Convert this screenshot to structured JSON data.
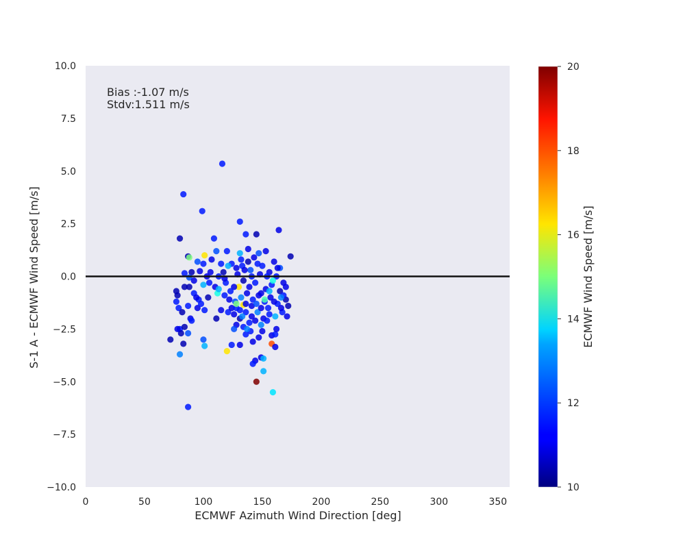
{
  "chart_data": {
    "type": "scatter",
    "title": "",
    "xlabel": "ECMWF Azimuth Wind Direction [deg]",
    "ylabel": "S-1 A - ECMWF Wind Speed [m/s]",
    "xlim": [
      0,
      360
    ],
    "ylim": [
      -10,
      10
    ],
    "xticks": [
      "0",
      "50",
      "100",
      "150",
      "200",
      "250",
      "300",
      "350"
    ],
    "xtick_values": [
      0,
      50,
      100,
      150,
      200,
      250,
      300,
      350
    ],
    "yticks": [
      "10.0",
      "7.5",
      "5.0",
      "2.5",
      "0.0",
      "−2.5",
      "−5.0",
      "−7.5",
      "−10.0"
    ],
    "ytick_values": [
      10,
      7.5,
      5,
      2.5,
      0,
      -2.5,
      -5,
      -7.5,
      -10
    ],
    "grid": false,
    "background_color": "#eaeaf2",
    "reference_line": {
      "y": 0,
      "color": "#111111"
    },
    "annotation_lines": [
      "Bias :-1.07 m/s",
      "Stdv:1.511 m/s"
    ],
    "colorbar": {
      "label": "ECMWF Wind Speed [m/s]",
      "range": [
        10,
        20
      ],
      "ticks": [
        "10",
        "12",
        "14",
        "16",
        "18",
        "20"
      ],
      "tick_values": [
        10,
        12,
        14,
        16,
        18,
        20
      ],
      "colormap": "jet"
    },
    "points": [
      [
        116,
        5.35,
        11.5
      ],
      [
        83,
        3.9,
        11.5
      ],
      [
        99,
        3.1,
        11.5
      ],
      [
        131,
        2.6,
        11.5
      ],
      [
        145,
        2.0,
        10.5
      ],
      [
        164,
        2.2,
        11.0
      ],
      [
        136,
        2.0,
        11.5
      ],
      [
        109,
        1.8,
        11.5
      ],
      [
        80,
        1.8,
        10.5
      ],
      [
        120,
        1.2,
        11.5
      ],
      [
        111,
        1.2,
        12.0
      ],
      [
        101,
        1.0,
        16.5
      ],
      [
        87,
        0.95,
        10.5
      ],
      [
        88,
        0.9,
        15.0
      ],
      [
        174,
        0.95,
        10.5
      ],
      [
        138,
        1.3,
        11.0
      ],
      [
        153,
        1.2,
        11.0
      ],
      [
        147,
        1.1,
        12.0
      ],
      [
        131,
        1.1,
        13.0
      ],
      [
        95,
        0.7,
        12.0
      ],
      [
        100,
        0.6,
        11.5
      ],
      [
        107,
        0.8,
        11.0
      ],
      [
        115,
        0.6,
        11.5
      ],
      [
        165,
        0.4,
        12.0
      ],
      [
        160,
        0.7,
        11.0
      ],
      [
        84,
        0.15,
        11.5
      ],
      [
        90,
        0.2,
        10.5
      ],
      [
        97,
        0.25,
        11.0
      ],
      [
        106,
        0.2,
        11.0
      ],
      [
        113,
        0.0,
        11.5
      ],
      [
        88,
        -0.05,
        12.0
      ],
      [
        92,
        -0.2,
        11.0
      ],
      [
        105,
        -0.3,
        11.5
      ],
      [
        110,
        -0.5,
        11.0
      ],
      [
        100,
        -0.4,
        13.0
      ],
      [
        119,
        -0.3,
        11.5
      ],
      [
        124,
        0.6,
        11.5
      ],
      [
        128,
        0.4,
        11.0
      ],
      [
        133,
        0.5,
        11.5
      ],
      [
        140,
        0.3,
        12.0
      ],
      [
        150,
        0.5,
        11.5
      ],
      [
        156,
        0.2,
        11.0
      ],
      [
        162,
        0.0,
        11.5
      ],
      [
        168,
        -0.3,
        11.0
      ],
      [
        143,
        0.9,
        11.0
      ],
      [
        84,
        -0.5,
        10.5
      ],
      [
        88,
        -0.5,
        10.5
      ],
      [
        92,
        -0.8,
        11.5
      ],
      [
        77,
        -0.7,
        10.5
      ],
      [
        78,
        -0.9,
        10.5
      ],
      [
        77,
        -1.2,
        11.5
      ],
      [
        96,
        -1.1,
        11.5
      ],
      [
        104,
        -1.0,
        10.5
      ],
      [
        112,
        -0.8,
        14.0
      ],
      [
        118,
        -0.9,
        11.5
      ],
      [
        122,
        -1.1,
        11.0
      ],
      [
        127,
        -1.2,
        12.0
      ],
      [
        132,
        -1.0,
        12.5
      ],
      [
        137,
        -0.8,
        11.0
      ],
      [
        142,
        -1.1,
        11.5
      ],
      [
        147,
        -0.9,
        11.0
      ],
      [
        152,
        -1.2,
        11.5
      ],
      [
        157,
        -1.0,
        11.0
      ],
      [
        163,
        -1.3,
        11.5
      ],
      [
        170,
        -1.1,
        10.5
      ],
      [
        79,
        -1.5,
        11.5
      ],
      [
        82,
        -1.7,
        10.5
      ],
      [
        87,
        -1.4,
        11.5
      ],
      [
        95,
        -1.5,
        11.0
      ],
      [
        101,
        -1.6,
        11.5
      ],
      [
        115,
        -1.6,
        11.0
      ],
      [
        121,
        -1.7,
        11.5
      ],
      [
        126,
        -1.8,
        11.0
      ],
      [
        131,
        -1.6,
        11.5
      ],
      [
        136,
        -1.7,
        11.5
      ],
      [
        141,
        -1.9,
        11.0
      ],
      [
        146,
        -1.7,
        12.5
      ],
      [
        151,
        -2.0,
        11.0
      ],
      [
        156,
        -1.8,
        11.5
      ],
      [
        161,
        -1.9,
        13.0
      ],
      [
        167,
        -1.7,
        11.5
      ],
      [
        171,
        -1.9,
        11.0
      ],
      [
        89,
        -2.0,
        11.0
      ],
      [
        90,
        -2.1,
        11.5
      ],
      [
        111,
        -2.0,
        10.5
      ],
      [
        128,
        -2.3,
        11.0
      ],
      [
        134,
        -2.4,
        11.5
      ],
      [
        139,
        -2.2,
        11.5
      ],
      [
        144,
        -2.1,
        11.0
      ],
      [
        149,
        -2.3,
        12.5
      ],
      [
        154,
        -2.1,
        11.5
      ],
      [
        80,
        -2.5,
        11.5
      ],
      [
        81,
        -2.7,
        10.5
      ],
      [
        84,
        -2.4,
        10.5
      ],
      [
        87,
        -2.7,
        12.0
      ],
      [
        72,
        -3.0,
        10.5
      ],
      [
        78,
        -2.5,
        11.0
      ],
      [
        83,
        -3.2,
        10.5
      ],
      [
        100,
        -3.0,
        12.0
      ],
      [
        101,
        -3.3,
        13.0
      ],
      [
        120,
        -3.55,
        16.5
      ],
      [
        124,
        -3.25,
        11.5
      ],
      [
        126,
        -2.5,
        12.0
      ],
      [
        131,
        -3.25,
        11.0
      ],
      [
        136,
        -2.75,
        11.5
      ],
      [
        142,
        -3.1,
        11.0
      ],
      [
        158,
        -2.8,
        11.0
      ],
      [
        161,
        -2.75,
        11.5
      ],
      [
        162,
        -2.5,
        11.0
      ],
      [
        158,
        -3.2,
        18.0
      ],
      [
        161,
        -3.35,
        11.0
      ],
      [
        149,
        -3.85,
        11.0
      ],
      [
        151,
        -3.9,
        13.0
      ],
      [
        144,
        -4.0,
        11.0
      ],
      [
        142,
        -4.15,
        11.5
      ],
      [
        151,
        -4.5,
        13.0
      ],
      [
        145,
        -5.0,
        20.0
      ],
      [
        159,
        -5.5,
        13.5
      ],
      [
        87,
        -6.2,
        11.5
      ],
      [
        80,
        -3.7,
        12.5
      ],
      [
        134,
        -1.35,
        16.5
      ],
      [
        130,
        -0.5,
        16.5
      ],
      [
        135,
        0.3,
        11.0
      ],
      [
        139,
        -0.5,
        11.0
      ],
      [
        144,
        -0.3,
        11.5
      ],
      [
        148,
        0.1,
        11.0
      ],
      [
        153,
        -0.6,
        11.0
      ],
      [
        158,
        -0.4,
        11.5
      ],
      [
        134,
        -0.2,
        10.5
      ],
      [
        129,
        0.1,
        11.0
      ],
      [
        138,
        0.7,
        10.5
      ],
      [
        146,
        0.6,
        11.5
      ],
      [
        141,
        -1.4,
        11.0
      ],
      [
        136,
        -1.3,
        11.0
      ],
      [
        131,
        -2.0,
        10.5
      ],
      [
        126,
        -0.5,
        11.0
      ],
      [
        124,
        -1.5,
        11.0
      ],
      [
        149,
        -1.5,
        11.0
      ],
      [
        155,
        -1.5,
        11.5
      ],
      [
        160,
        -1.2,
        11.0
      ],
      [
        165,
        -0.7,
        10.5
      ],
      [
        170,
        -0.5,
        11.0
      ],
      [
        166,
        -1.5,
        11.0
      ],
      [
        168,
        -0.9,
        11.5
      ],
      [
        163,
        0.4,
        11.0
      ],
      [
        172,
        -1.4,
        10.5
      ],
      [
        98,
        -1.3,
        11.5
      ],
      [
        94,
        -1.0,
        11.0
      ],
      [
        103,
        0.0,
        11.0
      ],
      [
        117,
        0.2,
        10.5
      ],
      [
        132,
        0.8,
        11.5
      ],
      [
        141,
        0.0,
        11.5
      ],
      [
        149,
        -0.8,
        11.0
      ],
      [
        154,
        0.0,
        11.5
      ],
      [
        150,
        -2.6,
        11.0
      ],
      [
        140,
        -2.6,
        11.5
      ],
      [
        147,
        -2.9,
        11.0
      ],
      [
        133,
        -1.9,
        12.5
      ],
      [
        128,
        -1.5,
        11.5
      ],
      [
        123,
        -0.7,
        11.5
      ],
      [
        118,
        -0.1,
        11.0
      ],
      [
        113,
        -0.6,
        13.0
      ],
      [
        121,
        0.5,
        13.0
      ],
      [
        166,
        -1.0,
        12.5
      ],
      [
        159,
        -0.2,
        14.0
      ],
      [
        128,
        -1.3,
        15.0
      ],
      [
        137,
        -2.5,
        12.5
      ],
      [
        152,
        -1.1,
        14.5
      ],
      [
        156,
        -0.7,
        13.0
      ],
      [
        145,
        -1.3,
        12.0
      ]
    ]
  }
}
